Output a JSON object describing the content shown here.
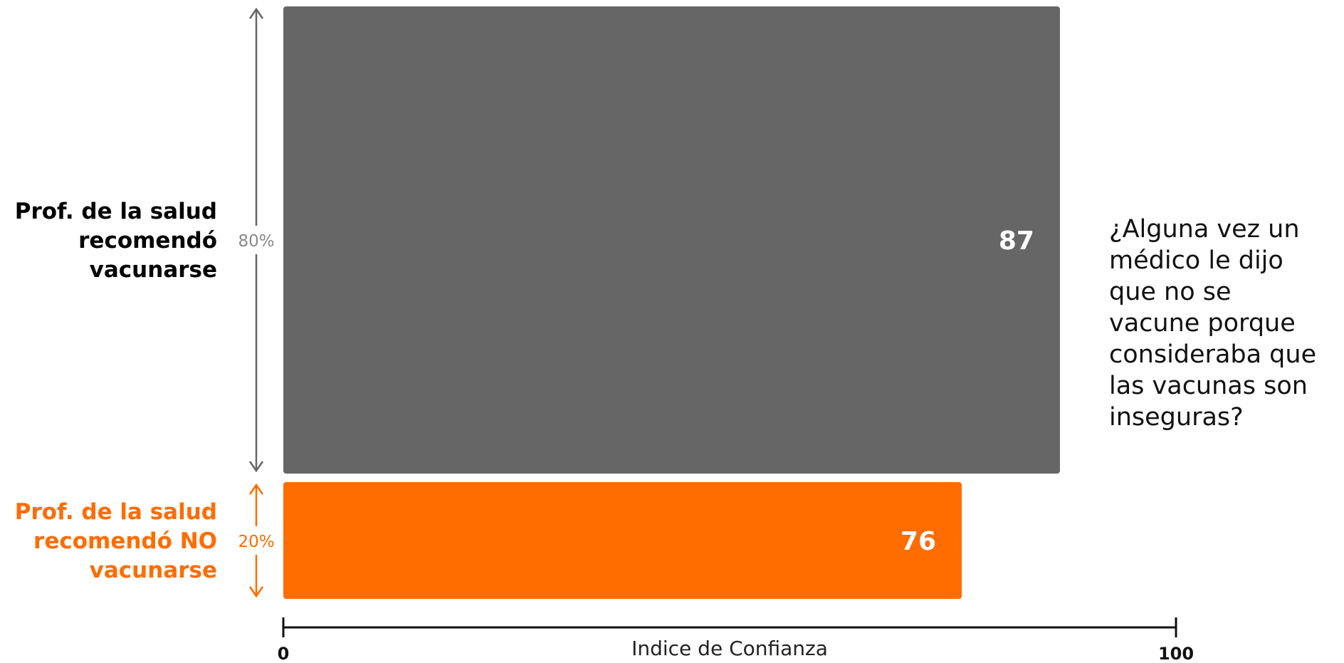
{
  "chart_data": {
    "type": "bar",
    "orientation": "horizontal",
    "categories": [
      "Prof. de la salud recomendó vacunarse",
      "Prof. de la salud recomendó NO vacunarse"
    ],
    "category_lines": [
      [
        "Prof. de la salud",
        "recomendó",
        "vacunarse"
      ],
      [
        "Prof. de la salud",
        "recomendó NO",
        "vacunarse"
      ]
    ],
    "values": [
      87,
      76
    ],
    "value_labels": [
      "87",
      "76"
    ],
    "shares": [
      80,
      20
    ],
    "share_labels": [
      "80%",
      "20%"
    ],
    "colors": [
      "#666666",
      "#ff6c00"
    ],
    "xlabel": "Indice de Confianza",
    "xlim": [
      0,
      100
    ],
    "xticks": [
      "0",
      "100"
    ],
    "annotation": [
      "¿Alguna vez un",
      "médico le dijo",
      "que no se",
      "vacune porque",
      "consideraba que",
      "las vacunas son",
      "inseguras?"
    ]
  }
}
